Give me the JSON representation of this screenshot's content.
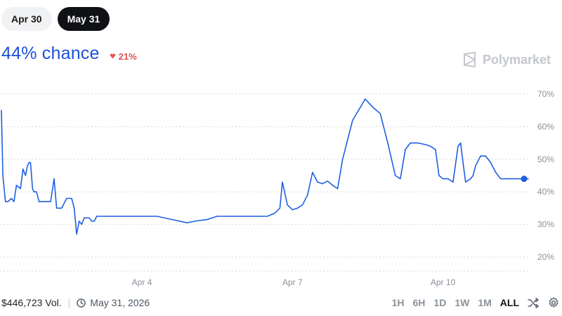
{
  "tabs": [
    {
      "label": "Apr 30",
      "active": false
    },
    {
      "label": "May 31",
      "active": true
    }
  ],
  "header": {
    "chance_text": "44% chance",
    "change_text": "21%",
    "change_direction": "down",
    "brand": "Polymarket"
  },
  "footer": {
    "volume": "$446,723 Vol.",
    "date": "May 31, 2026",
    "ranges": [
      "1H",
      "6H",
      "1D",
      "1W",
      "1M",
      "ALL"
    ],
    "active_range": "ALL"
  },
  "colors": {
    "accent": "#1d4fd8",
    "down": "#e05252",
    "line": "#1f5fe0"
  },
  "chart_data": {
    "type": "line",
    "yticks": [
      "70%",
      "60%",
      "50%",
      "40%",
      "30%",
      "20%"
    ],
    "ytick_values": [
      70,
      60,
      50,
      40,
      30,
      20
    ],
    "ylim": [
      16,
      73
    ],
    "xticks": [
      "Apr 4",
      "Apr 7",
      "Apr 10"
    ],
    "xtick_days": [
      4,
      7,
      10
    ],
    "xlim": [
      1.2,
      11.7
    ],
    "grid": true,
    "series": [
      {
        "x": [
          1.2,
          1.23,
          1.28,
          1.33,
          1.4,
          1.45,
          1.5,
          1.58,
          1.63,
          1.68,
          1.72,
          1.75,
          1.78,
          1.82,
          1.85,
          1.9,
          1.95,
          2.0,
          2.05,
          2.1,
          2.18,
          2.25,
          2.3,
          2.4,
          2.5,
          2.6,
          2.65,
          2.7,
          2.75,
          2.8,
          2.85,
          2.95,
          3.0,
          3.05,
          3.1,
          3.15,
          3.2,
          3.25,
          3.35,
          3.42,
          3.55,
          3.75,
          4.0,
          4.3,
          4.6,
          4.9,
          5.05,
          5.3,
          5.5,
          5.8,
          6.2,
          6.5,
          6.65,
          6.75,
          6.8,
          6.9,
          7.0,
          7.1,
          7.2,
          7.3,
          7.4,
          7.5,
          7.6,
          7.7,
          7.8,
          7.9,
          8.0,
          8.2,
          8.45,
          8.6,
          8.75,
          8.9,
          9.05,
          9.15,
          9.25,
          9.35,
          9.5,
          9.65,
          9.75,
          9.85,
          9.92,
          10.0,
          10.1,
          10.2,
          10.3,
          10.35,
          10.45,
          10.55,
          10.6,
          10.65,
          10.75,
          10.85,
          10.95,
          11.05,
          11.15,
          11.2,
          11.3,
          11.45,
          11.55,
          11.62,
          11.7
        ],
        "y": [
          65,
          45,
          37,
          37,
          38,
          37,
          42,
          41,
          47,
          45,
          48,
          49,
          49,
          41,
          40,
          40,
          37,
          37,
          37,
          37,
          37,
          44,
          35,
          35,
          38,
          38,
          35,
          27,
          31,
          30,
          32,
          32,
          31,
          31,
          32.5,
          32.5,
          32.5,
          32.5,
          32.5,
          32.5,
          32.5,
          32.5,
          32.5,
          32.5,
          31.5,
          30.5,
          31,
          31.5,
          32.5,
          32.5,
          32.5,
          32.5,
          33.5,
          35,
          43,
          36,
          34.5,
          35,
          36,
          39,
          46,
          43,
          42.5,
          43.3,
          42,
          41,
          50,
          62,
          68.5,
          66,
          64,
          55,
          45,
          44,
          53,
          55,
          55,
          54.5,
          54,
          53,
          45,
          44,
          44,
          43,
          54,
          55,
          43,
          44,
          45,
          48,
          51,
          51,
          49,
          46,
          44,
          44,
          44,
          44,
          44,
          44,
          44
        ]
      }
    ],
    "last_point": {
      "x": 11.7,
      "y": 44
    }
  }
}
